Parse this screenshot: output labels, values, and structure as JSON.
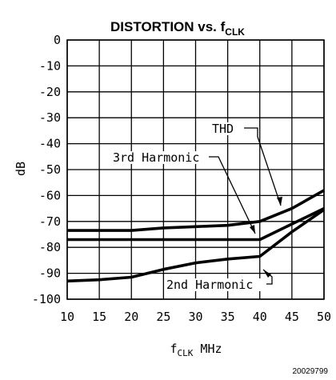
{
  "chart_data": {
    "type": "line",
    "title": "DISTORTION vs. f",
    "title_sub": "CLK",
    "xlabel": "f",
    "xlabel_sub": "CLK",
    "xlabel_unit": " MHz",
    "ylabel": "dB",
    "xlim": [
      10,
      50
    ],
    "ylim": [
      -100,
      0
    ],
    "x_ticks": [
      10,
      15,
      20,
      25,
      30,
      35,
      40,
      45,
      50
    ],
    "y_ticks": [
      0,
      -10,
      -20,
      -30,
      -40,
      -50,
      -60,
      -70,
      -80,
      -90,
      -100
    ],
    "grid": true,
    "series": [
      {
        "name": "THD",
        "x": [
          10,
          20,
          25,
          30,
          35,
          40,
          45,
          50
        ],
        "y": [
          -73.5,
          -73.5,
          -72.5,
          -72,
          -71.5,
          -70,
          -65,
          -58
        ]
      },
      {
        "name": "3rd Harmonic",
        "x": [
          10,
          20,
          25,
          30,
          35,
          40,
          45,
          50
        ],
        "y": [
          -77,
          -77,
          -77,
          -77,
          -77,
          -77,
          -71,
          -65
        ]
      },
      {
        "name": "2nd Harmonic",
        "x": [
          10,
          15,
          20,
          25,
          30,
          35,
          40,
          45,
          50
        ],
        "y": [
          -93,
          -92.5,
          -91.5,
          -88.5,
          -86,
          -84.5,
          -83.5,
          -74,
          -65.5
        ]
      }
    ],
    "annotations": [
      {
        "text": "THD",
        "series": "THD"
      },
      {
        "text": "3rd Harmonic",
        "series": "3rd Harmonic"
      },
      {
        "text": "2nd Harmonic",
        "series": "2nd Harmonic"
      }
    ]
  },
  "figure_id": "20029799"
}
